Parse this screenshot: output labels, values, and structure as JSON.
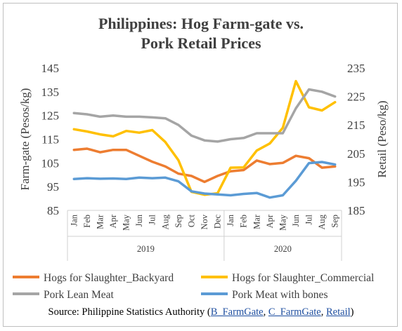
{
  "chart_data": {
    "type": "line",
    "title_lines": [
      "Philippines: Hog Farm-gate vs.",
      "Pork Retail Prices"
    ],
    "left_axis": {
      "label": "Farm-gate (Pesos/kg)",
      "min": 85,
      "max": 145,
      "ticks": [
        85,
        95,
        105,
        115,
        125,
        135,
        145
      ]
    },
    "right_axis": {
      "label": "Retail (Peso/kg)",
      "min": 185,
      "max": 235,
      "ticks": [
        185,
        195,
        205,
        215,
        225,
        235
      ]
    },
    "x_months": [
      "Jan",
      "Feb",
      "Mar",
      "Apr",
      "May",
      "Jun",
      "Jul",
      "Aug",
      "Sep",
      "Oct",
      "Nov",
      "Dec",
      "Jan",
      "Feb",
      "Mar",
      "Apr",
      "May",
      "Jun",
      "Jul",
      "Aug",
      "Sep"
    ],
    "x_groups": [
      {
        "label": "2019",
        "start": 0,
        "end": 11
      },
      {
        "label": "2020",
        "start": 12,
        "end": 20
      }
    ],
    "grid": false,
    "legend_position": "bottom",
    "series": [
      {
        "name": "Hogs for Slaughter_Backyard",
        "axis": "left",
        "color": "#ed7d31",
        "values": [
          110.5,
          111,
          109.5,
          110.5,
          110.5,
          108,
          105.5,
          103.5,
          100.5,
          99.5,
          97,
          99.5,
          101.5,
          102,
          106,
          104.5,
          105,
          108,
          107,
          103,
          103.5
        ]
      },
      {
        "name": "Hogs for Slaughter_Commercial",
        "axis": "right",
        "color": "#ffc000",
        "values": [
          213.5,
          212.7,
          211.7,
          211,
          212.9,
          212.3,
          213.2,
          209,
          202.6,
          191.5,
          190.5,
          191,
          200,
          200.1,
          206,
          208.5,
          214,
          230.4,
          221.2,
          220.1,
          223
        ]
      },
      {
        "name": "Pork Lean Meat",
        "axis": "left",
        "color": "#a5a5a5",
        "values": [
          126,
          125.5,
          124.5,
          125,
          124.5,
          124.5,
          124.2,
          123.8,
          121,
          116.5,
          114.5,
          114,
          115,
          115.5,
          117.5,
          117.5,
          117.5,
          128,
          136,
          135,
          133
        ]
      },
      {
        "name": "Pork Meat with bones",
        "axis": "right",
        "color": "#5b9bd5",
        "values": [
          196,
          196.3,
          196.1,
          196.2,
          196,
          196.5,
          196.3,
          196.5,
          195.2,
          191.7,
          190.9,
          190.6,
          190.3,
          190.8,
          191.1,
          189.5,
          190.3,
          195.4,
          201.6,
          202,
          201.1
        ]
      }
    ]
  },
  "source": {
    "prefix": "Source:  Philippine Statistics Authority (",
    "links": [
      "B_FarmGate",
      "C_FarmGate",
      "Retail"
    ],
    "separator": ", ",
    "suffix": ")"
  }
}
